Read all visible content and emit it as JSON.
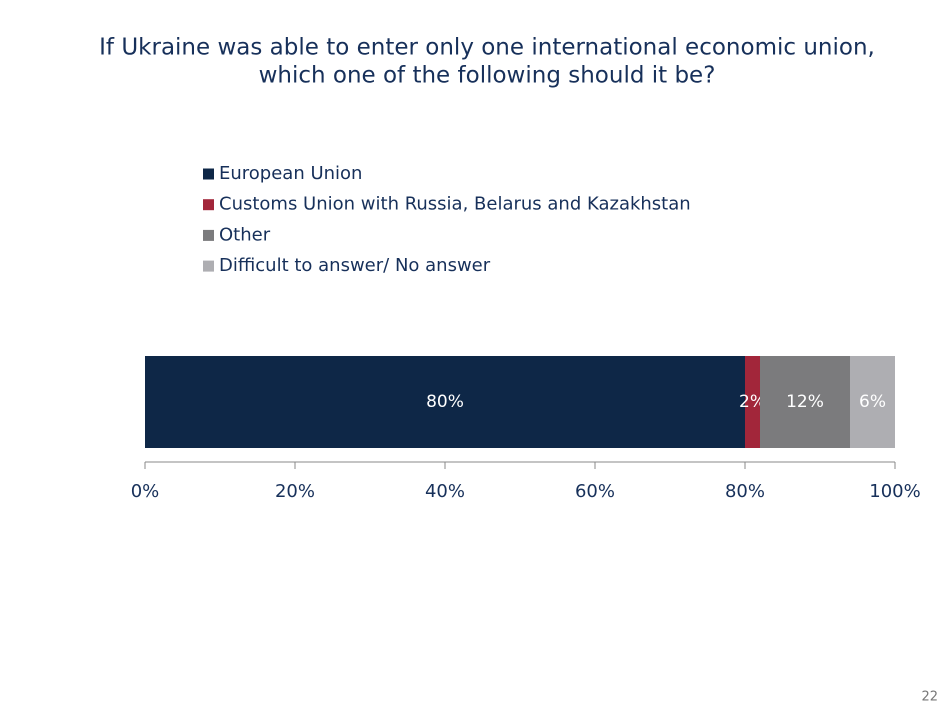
{
  "chart_data": {
    "type": "stacked-bar-horizontal",
    "title": [
      "If Ukraine was able to enter only one international economic union,",
      "which one of the following should it be?"
    ],
    "series": [
      {
        "name": "European Union",
        "color": "#0e2747",
        "values": [
          80
        ],
        "value_labels": [
          "80%"
        ]
      },
      {
        "name": "Customs Union with Russia, Belarus and Kazakhstan",
        "color": "#a2263a",
        "values": [
          2
        ],
        "value_labels": [
          "2%"
        ]
      },
      {
        "name": "Other",
        "color": "#7b7b7d",
        "values": [
          12
        ],
        "value_labels": [
          "12%"
        ]
      },
      {
        "name": "Difficult to answer/ No answer",
        "color": "#aeaeb2",
        "values": [
          6
        ],
        "value_labels": [
          "6%"
        ]
      }
    ],
    "xlim": [
      0,
      100
    ],
    "xticks": [
      {
        "value": 0,
        "label": "0%"
      },
      {
        "value": 20,
        "label": "20%"
      },
      {
        "value": 40,
        "label": "40%"
      },
      {
        "value": 60,
        "label": "60%"
      },
      {
        "value": 80,
        "label": "80%"
      },
      {
        "value": 100,
        "label": "100%"
      }
    ],
    "legend": "top"
  },
  "page_number": "22"
}
